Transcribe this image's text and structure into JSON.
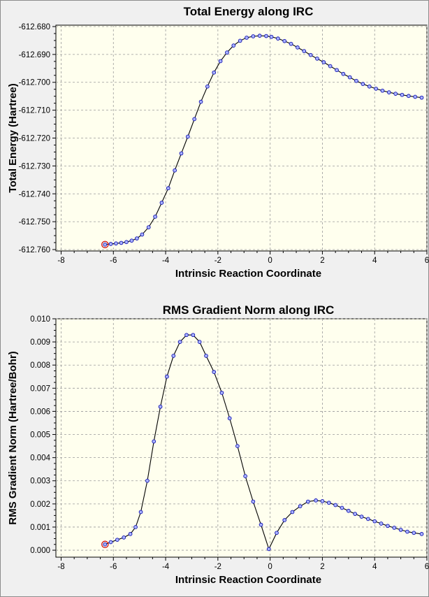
{
  "chart_data": [
    {
      "type": "line",
      "title": "Total Energy along IRC",
      "xlabel": "Intrinsic Reaction Coordinate",
      "ylabel": "Total Energy (Hartree)",
      "xlim": [
        -8.2,
        6.0
      ],
      "ylim": [
        -612.7605,
        -612.6795
      ],
      "xticks": [
        -8,
        -6,
        -4,
        -2,
        0,
        2,
        4,
        6
      ],
      "xtick_labels": [
        "-8",
        "-6",
        "-4",
        "-2",
        "0",
        "2",
        "4",
        "6"
      ],
      "yticks": [
        -612.76,
        -612.75,
        -612.74,
        -612.73,
        -612.72,
        -612.71,
        -612.7,
        -612.69,
        -612.68
      ],
      "ytick_labels": [
        "-612.760",
        "-612.750",
        "-612.740",
        "-612.730",
        "-612.720",
        "-612.710",
        "-612.700",
        "-612.690",
        "-612.680"
      ],
      "grid": true,
      "highlighted_point_index": 0,
      "series": [
        {
          "x": [
            -6.32,
            -6.1,
            -5.9,
            -5.7,
            -5.5,
            -5.3,
            -5.1,
            -4.9,
            -4.65,
            -4.4,
            -4.15,
            -3.9,
            -3.65,
            -3.4,
            -3.15,
            -2.9,
            -2.65,
            -2.4,
            -2.15,
            -1.9,
            -1.65,
            -1.4,
            -1.15,
            -0.9,
            -0.65,
            -0.4,
            -0.15,
            0.05,
            0.3,
            0.55,
            0.8,
            1.05,
            1.3,
            1.55,
            1.8,
            2.05,
            2.3,
            2.55,
            2.8,
            3.05,
            3.3,
            3.55,
            3.8,
            4.05,
            4.3,
            4.55,
            4.8,
            5.05,
            5.3,
            5.55,
            5.8
          ],
          "y": [
            -612.7582,
            -612.758,
            -612.7578,
            -612.7576,
            -612.7573,
            -612.7568,
            -612.756,
            -612.7546,
            -612.752,
            -612.7482,
            -612.7432,
            -612.738,
            -612.7316,
            -612.7255,
            -612.7195,
            -612.7132,
            -612.707,
            -612.7015,
            -612.6965,
            -612.6924,
            -612.6893,
            -612.6868,
            -612.6851,
            -612.684,
            -612.6835,
            -612.6833,
            -612.6834,
            -612.6837,
            -612.6843,
            -612.6852,
            -612.6862,
            -612.6875,
            -612.6888,
            -612.6902,
            -612.6915,
            -612.6928,
            -612.6942,
            -612.6956,
            -612.697,
            -612.6982,
            -612.6995,
            -612.7006,
            -612.7015,
            -612.7023,
            -612.703,
            -612.7036,
            -612.7041,
            -612.7045,
            -612.7049,
            -612.7052,
            -612.7055
          ]
        }
      ]
    },
    {
      "type": "line",
      "title": "RMS Gradient Norm along IRC",
      "xlabel": "Intrinsic Reaction Coordinate",
      "ylabel": "RMS Gradient Norm (Hartree/Bohr)",
      "xlim": [
        -8.2,
        6.0
      ],
      "ylim": [
        -0.0003,
        0.01
      ],
      "xticks": [
        -8,
        -6,
        -4,
        -2,
        0,
        2,
        4,
        6
      ],
      "xtick_labels": [
        "-8",
        "-6",
        "-4",
        "-2",
        "0",
        "2",
        "4",
        "6"
      ],
      "yticks": [
        0.0,
        0.001,
        0.002,
        0.003,
        0.004,
        0.005,
        0.006,
        0.007,
        0.008,
        0.009,
        0.01
      ],
      "ytick_labels": [
        "0.000",
        "0.001",
        "0.002",
        "0.003",
        "0.004",
        "0.005",
        "0.006",
        "0.007",
        "0.008",
        "0.009",
        "0.010"
      ],
      "grid": true,
      "highlighted_point_index": 0,
      "series": [
        {
          "x": [
            -6.32,
            -6.1,
            -5.85,
            -5.6,
            -5.35,
            -5.15,
            -4.95,
            -4.7,
            -4.45,
            -4.2,
            -3.95,
            -3.7,
            -3.45,
            -3.2,
            -2.95,
            -2.7,
            -2.45,
            -2.15,
            -1.85,
            -1.55,
            -1.25,
            -0.95,
            -0.65,
            -0.35,
            -0.05,
            0.25,
            0.55,
            0.85,
            1.15,
            1.45,
            1.75,
            2.0,
            2.25,
            2.5,
            2.75,
            3.0,
            3.25,
            3.5,
            3.75,
            4.0,
            4.25,
            4.5,
            4.75,
            5.0,
            5.25,
            5.5,
            5.8
          ],
          "y": [
            0.00025,
            0.00035,
            0.00045,
            0.00055,
            0.0007,
            0.001,
            0.00165,
            0.003,
            0.0047,
            0.0062,
            0.0075,
            0.0084,
            0.009,
            0.0093,
            0.0093,
            0.009,
            0.0084,
            0.0077,
            0.0068,
            0.0057,
            0.0045,
            0.0032,
            0.0021,
            0.0011,
            5e-05,
            0.00075,
            0.0013,
            0.00165,
            0.0019,
            0.0021,
            0.00215,
            0.00212,
            0.00205,
            0.00195,
            0.00183,
            0.0017,
            0.00157,
            0.00145,
            0.00135,
            0.00125,
            0.00115,
            0.00105,
            0.00097,
            0.00088,
            0.0008,
            0.00075,
            0.0007
          ]
        }
      ]
    }
  ]
}
